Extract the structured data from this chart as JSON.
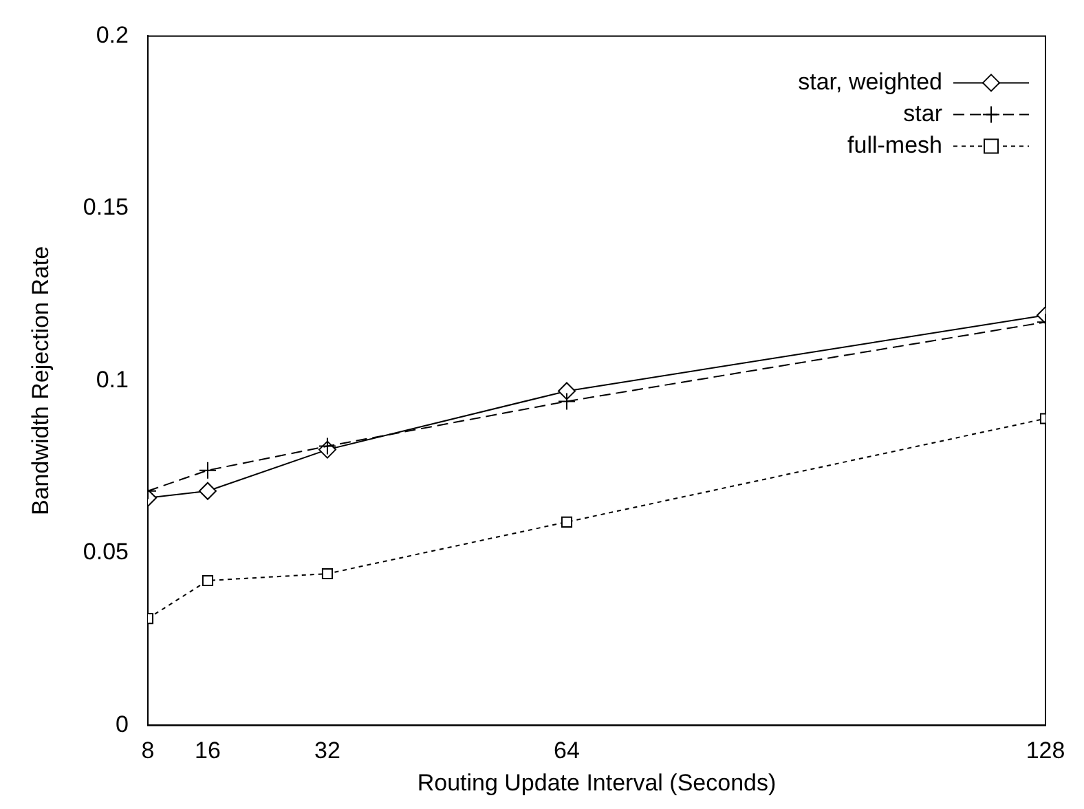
{
  "chart_data": {
    "type": "line",
    "xlabel": "Routing Update Interval (Seconds)",
    "ylabel": "Bandwidth Rejection Rate",
    "x": [
      8,
      16,
      32,
      64,
      128
    ],
    "xlim": [
      8,
      128
    ],
    "xticks": [
      8,
      16,
      32,
      64,
      128
    ],
    "ylim": [
      0,
      0.2
    ],
    "yticks": [
      0,
      0.05,
      0.1,
      0.15,
      0.2
    ],
    "grid": false,
    "legend": "top right",
    "series": [
      {
        "name": "star, weighted",
        "color": "#000000",
        "marker": "diamond",
        "line_style": "solid",
        "values": [
          0.066,
          0.068,
          0.08,
          0.097,
          0.119
        ]
      },
      {
        "name": "star",
        "color": "#000000",
        "marker": "cross",
        "line_style": "dashed",
        "values": [
          0.068,
          0.074,
          0.081,
          0.094,
          0.117
        ]
      },
      {
        "name": "full-mesh",
        "color": "#000000",
        "marker": "square",
        "line_style": "dotted",
        "values": [
          0.031,
          0.042,
          0.044,
          0.059,
          0.089
        ]
      }
    ]
  }
}
